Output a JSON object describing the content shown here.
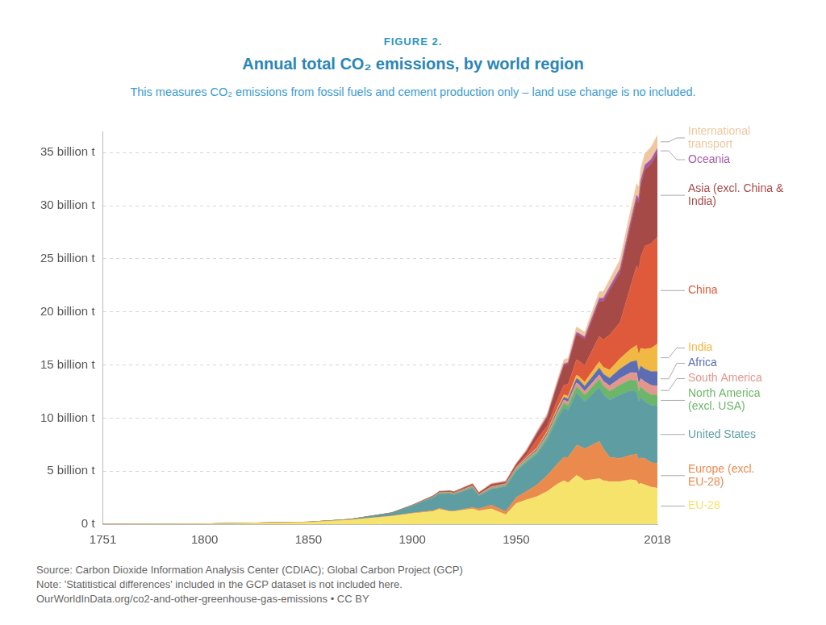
{
  "chart_data": {
    "type": "area",
    "figure_label": "FIGURE 2.",
    "title": "Annual total CO₂ emissions, by world region",
    "subtitle": "This measures CO₂ emissions from fossil fuels and cement production only – land use change is no included.",
    "footnotes": [
      "Source: Carbon Dioxide Information Analysis Center (CDIAC); Global Carbon Project (GCP)",
      "Note: 'Statitistical differences' included in the GCP dataset is not included here.",
      "OurWorldInData.org/co2-and-other-greenhouse-gas-emissions • CC BY"
    ],
    "stacked": true,
    "grid": true,
    "xlim": [
      1751,
      2018
    ],
    "xticks": [
      1751,
      1800,
      1850,
      1900,
      1950,
      2018
    ],
    "ylim": [
      0,
      37
    ],
    "yticks": [
      {
        "value": 0,
        "label": "0 t"
      },
      {
        "value": 5,
        "label": "5 billion t"
      },
      {
        "value": 10,
        "label": "10 billion t"
      },
      {
        "value": 15,
        "label": "15 billion t"
      },
      {
        "value": 20,
        "label": "20 billion t"
      },
      {
        "value": 25,
        "label": "25 billion t"
      },
      {
        "value": 30,
        "label": "30 billion t"
      },
      {
        "value": 35,
        "label": "35 billion t"
      }
    ],
    "x": [
      1751,
      1800,
      1850,
      1870,
      1890,
      1900,
      1910,
      1913,
      1918,
      1920,
      1929,
      1932,
      1938,
      1945,
      1950,
      1955,
      1960,
      1965,
      1970,
      1973,
      1975,
      1979,
      1980,
      1983,
      1990,
      1992,
      1995,
      2000,
      2005,
      2008,
      2009,
      2010,
      2012,
      2015,
      2018
    ],
    "series": [
      {
        "name": "EU-28",
        "color": "#f6e36c",
        "values": [
          0.009,
          0.028,
          0.19,
          0.4,
          0.75,
          1.0,
          1.2,
          1.4,
          1.2,
          1.2,
          1.45,
          1.25,
          1.45,
          0.9,
          1.95,
          2.3,
          2.6,
          3.1,
          3.8,
          4.1,
          3.9,
          4.6,
          4.5,
          4.1,
          4.3,
          4.1,
          4.0,
          4.0,
          4.2,
          4.1,
          3.75,
          3.85,
          3.7,
          3.5,
          3.4
        ]
      },
      {
        "name": "Europe (excl. EU-28)",
        "color": "#ea8a4d",
        "values": [
          0,
          0,
          0.003,
          0.01,
          0.03,
          0.06,
          0.09,
          0.11,
          0.03,
          0.03,
          0.12,
          0.2,
          0.35,
          0.3,
          0.55,
          0.8,
          1.1,
          1.5,
          1.9,
          2.2,
          2.4,
          2.8,
          2.9,
          3.0,
          3.5,
          3.0,
          2.3,
          2.2,
          2.3,
          2.5,
          2.3,
          2.4,
          2.5,
          2.3,
          2.35
        ]
      },
      {
        "name": "United States",
        "color": "#5e9ea2",
        "values": [
          0,
          0.0003,
          0.005,
          0.04,
          0.26,
          0.66,
          1.2,
          1.35,
          1.65,
          1.55,
          1.85,
          1.2,
          1.5,
          2.35,
          2.5,
          2.75,
          2.9,
          3.4,
          4.3,
          4.7,
          4.45,
          4.95,
          4.8,
          4.45,
          5.1,
          5.15,
          5.4,
          6.0,
          6.1,
          5.9,
          5.5,
          5.7,
          5.35,
          5.4,
          5.4
        ]
      },
      {
        "name": "North America (excl. USA)",
        "color": "#6cb66a",
        "values": [
          0,
          0,
          0.001,
          0.003,
          0.01,
          0.02,
          0.04,
          0.05,
          0.05,
          0.05,
          0.06,
          0.045,
          0.06,
          0.08,
          0.12,
          0.15,
          0.2,
          0.27,
          0.37,
          0.42,
          0.46,
          0.58,
          0.62,
          0.6,
          0.75,
          0.78,
          0.82,
          0.93,
          1.0,
          1.0,
          0.95,
          0.98,
          1.0,
          1.0,
          1.03
        ]
      },
      {
        "name": "South America",
        "color": "#e2968d",
        "values": [
          0,
          0,
          0,
          0.001,
          0.004,
          0.008,
          0.015,
          0.02,
          0.015,
          0.02,
          0.04,
          0.03,
          0.05,
          0.05,
          0.08,
          0.12,
          0.15,
          0.19,
          0.25,
          0.29,
          0.31,
          0.38,
          0.39,
          0.36,
          0.42,
          0.44,
          0.52,
          0.62,
          0.67,
          0.77,
          0.74,
          0.8,
          0.86,
          0.88,
          0.83
        ]
      },
      {
        "name": "Africa",
        "color": "#5c6db3",
        "values": [
          0,
          0,
          0,
          0,
          0.002,
          0.006,
          0.015,
          0.02,
          0.02,
          0.025,
          0.035,
          0.03,
          0.04,
          0.055,
          0.07,
          0.1,
          0.13,
          0.16,
          0.2,
          0.25,
          0.28,
          0.4,
          0.42,
          0.48,
          0.65,
          0.66,
          0.72,
          0.87,
          1.0,
          1.15,
          1.15,
          1.17,
          1.2,
          1.3,
          1.37
        ]
      },
      {
        "name": "India",
        "color": "#f2b844",
        "values": [
          0,
          0,
          0,
          0.001,
          0.006,
          0.016,
          0.03,
          0.04,
          0.05,
          0.05,
          0.06,
          0.05,
          0.07,
          0.08,
          0.07,
          0.09,
          0.12,
          0.16,
          0.2,
          0.23,
          0.26,
          0.32,
          0.33,
          0.4,
          0.58,
          0.65,
          0.77,
          0.98,
          1.19,
          1.43,
          1.56,
          1.66,
          1.88,
          2.2,
          2.6
        ]
      },
      {
        "name": "China",
        "color": "#df5a3b",
        "values": [
          0,
          0,
          0,
          0,
          0,
          0.001,
          0.01,
          0.015,
          0.02,
          0.02,
          0.03,
          0.03,
          0.04,
          0.03,
          0.08,
          0.2,
          0.78,
          0.48,
          0.77,
          0.93,
          1.12,
          1.45,
          1.45,
          1.55,
          2.4,
          2.6,
          3.3,
          3.4,
          5.9,
          7.5,
          8.0,
          8.6,
          9.7,
          9.85,
          10.06
        ]
      },
      {
        "name": "Asia (excl. China & India)",
        "color": "#a64a48",
        "values": [
          0,
          0,
          0.001,
          0.002,
          0.01,
          0.02,
          0.05,
          0.06,
          0.08,
          0.08,
          0.12,
          0.1,
          0.18,
          0.12,
          0.2,
          0.35,
          0.55,
          0.85,
          1.45,
          1.85,
          1.9,
          2.4,
          2.4,
          2.5,
          3.3,
          3.6,
          4.2,
          4.7,
          5.7,
          6.2,
          6.3,
          6.8,
          7.2,
          7.5,
          7.9
        ]
      },
      {
        "name": "Oceania",
        "color": "#a45aaa",
        "values": [
          0,
          0,
          0.001,
          0.003,
          0.01,
          0.015,
          0.02,
          0.025,
          0.025,
          0.025,
          0.03,
          0.025,
          0.03,
          0.035,
          0.04,
          0.05,
          0.07,
          0.1,
          0.13,
          0.15,
          0.16,
          0.19,
          0.2,
          0.21,
          0.3,
          0.31,
          0.33,
          0.38,
          0.42,
          0.44,
          0.45,
          0.44,
          0.45,
          0.45,
          0.46
        ]
      },
      {
        "name": "International transport",
        "color": "#efc79f",
        "values": [
          0,
          0,
          0,
          0,
          0,
          0.01,
          0.03,
          0.04,
          0.04,
          0.05,
          0.07,
          0.06,
          0.08,
          0.1,
          0.12,
          0.17,
          0.2,
          0.25,
          0.35,
          0.4,
          0.4,
          0.5,
          0.48,
          0.45,
          0.6,
          0.65,
          0.7,
          0.85,
          1.0,
          1.1,
          1.05,
          1.1,
          1.1,
          1.15,
          1.25
        ]
      }
    ]
  }
}
